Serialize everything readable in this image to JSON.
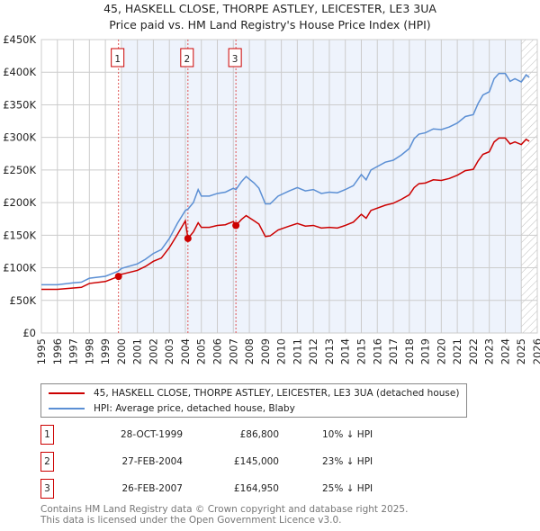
{
  "chart_data": {
    "type": "line",
    "title": "45, HASKELL CLOSE, THORPE ASTLEY, LEICESTER, LE3 3UA",
    "subtitle": "Price paid vs. HM Land Registry's House Price Index (HPI)",
    "xlim": [
      1995,
      2026
    ],
    "ylim": [
      0,
      450000
    ],
    "x_ticks": [
      "1995",
      "1996",
      "1997",
      "1998",
      "1999",
      "2000",
      "2001",
      "2002",
      "2003",
      "2004",
      "2005",
      "2006",
      "2007",
      "2008",
      "2009",
      "2010",
      "2011",
      "2012",
      "2013",
      "2014",
      "2015",
      "2016",
      "2017",
      "2018",
      "2019",
      "2020",
      "2021",
      "2022",
      "2023",
      "2024",
      "2025",
      "2026"
    ],
    "y_ticks": [
      {
        "v": 0,
        "label": "£0"
      },
      {
        "v": 50000,
        "label": "£50K"
      },
      {
        "v": 100000,
        "label": "£100K"
      },
      {
        "v": 150000,
        "label": "£150K"
      },
      {
        "v": 200000,
        "label": "£200K"
      },
      {
        "v": 250000,
        "label": "£250K"
      },
      {
        "v": 300000,
        "label": "£300K"
      },
      {
        "v": 350000,
        "label": "£350K"
      },
      {
        "v": 400000,
        "label": "£400K"
      },
      {
        "v": 450000,
        "label": "£450K"
      }
    ],
    "grid": true,
    "shaded_range": [
      2000.0,
      2025.0
    ],
    "hatched_from": 2025.0,
    "series": [
      {
        "name": "45, HASKELL CLOSE, THORPE ASTLEY, LEICESTER, LE3 3UA (detached house)",
        "color": "#cc0000",
        "x": [
          1995,
          1996,
          1997,
          1997.5,
          1998,
          1999,
          1999.82,
          2000,
          2001,
          2001.5,
          2002,
          2002.5,
          2003,
          2003.5,
          2004.0,
          2004.16,
          2004.5,
          2004.8,
          2005,
          2005.5,
          2006,
          2006.5,
          2007.0,
          2007.16,
          2007.5,
          2007.8,
          2008.3,
          2008.6,
          2009,
          2009.3,
          2009.8,
          2010.5,
          2011,
          2011.5,
          2012,
          2012.5,
          2013,
          2013.5,
          2014,
          2014.5,
          2015,
          2015.3,
          2015.6,
          2016.5,
          2017,
          2017.5,
          2018,
          2018.3,
          2018.6,
          2019,
          2019.5,
          2020,
          2020.5,
          2021,
          2021.5,
          2022,
          2022.3,
          2022.6,
          2023,
          2023.3,
          2023.6,
          2024,
          2024.3,
          2024.6,
          2025,
          2025.3,
          2025.5
        ],
        "y": [
          67,
          67,
          69,
          70,
          76,
          79,
          86.8,
          90,
          96,
          102,
          110,
          115,
          131,
          151,
          172,
          145,
          155,
          169,
          162,
          162,
          165,
          166,
          171,
          164.95,
          174,
          180,
          172,
          167,
          148,
          149,
          158,
          164,
          168,
          164,
          165,
          161,
          162,
          161,
          165,
          170,
          182,
          176,
          188,
          196,
          199,
          205,
          212,
          223,
          229,
          230,
          235,
          234,
          237,
          242,
          249,
          251,
          264,
          274,
          278,
          293,
          299,
          299,
          290,
          293,
          289,
          297,
          294
        ]
      },
      {
        "name": "HPI: Average price, detached house, Blaby",
        "color": "#5b8fd4",
        "x": [
          1995,
          1996,
          1997,
          1997.5,
          1998,
          1999,
          1999.82,
          2000,
          2001,
          2001.5,
          2002,
          2002.5,
          2003,
          2003.5,
          2004.0,
          2004.16,
          2004.5,
          2004.8,
          2005,
          2005.5,
          2006,
          2006.5,
          2007.0,
          2007.16,
          2007.5,
          2007.8,
          2008.3,
          2008.6,
          2009,
          2009.3,
          2009.8,
          2010.5,
          2011,
          2011.5,
          2012,
          2012.5,
          2013,
          2013.5,
          2014,
          2014.5,
          2015,
          2015.3,
          2015.6,
          2016.5,
          2017,
          2017.5,
          2018,
          2018.3,
          2018.6,
          2019,
          2019.5,
          2020,
          2020.5,
          2021,
          2021.5,
          2022,
          2022.3,
          2022.6,
          2023,
          2023.3,
          2023.6,
          2024,
          2024.3,
          2024.6,
          2025,
          2025.3,
          2025.5
        ],
        "y": [
          74,
          74,
          77,
          78,
          84,
          87,
          95,
          99,
          106,
          113,
          122,
          128,
          145,
          168,
          188,
          190,
          200,
          220,
          210,
          210,
          214,
          216,
          222,
          220,
          232,
          240,
          230,
          222,
          198,
          198,
          210,
          218,
          223,
          218,
          220,
          214,
          216,
          215,
          220,
          226,
          243,
          235,
          250,
          262,
          265,
          273,
          283,
          298,
          305,
          307,
          313,
          312,
          316,
          322,
          332,
          335,
          352,
          365,
          370,
          390,
          398,
          398,
          386,
          390,
          385,
          396,
          392
        ]
      }
    ],
    "y_units": "thousands GBP",
    "sales": [
      {
        "n": "1",
        "x": 1999.82,
        "y": 86.8,
        "date": "28-OCT-1999",
        "price": "£86,800",
        "hpi": "10% ↓ HPI"
      },
      {
        "n": "2",
        "x": 2004.16,
        "y": 145,
        "date": "27-FEB-2004",
        "price": "£145,000",
        "hpi": "23% ↓ HPI"
      },
      {
        "n": "3",
        "x": 2007.16,
        "y": 164.95,
        "date": "26-FEB-2007",
        "price": "£164,950",
        "hpi": "25% ↓ HPI"
      }
    ]
  },
  "legend": {
    "property": "45, HASKELL CLOSE, THORPE ASTLEY, LEICESTER, LE3 3UA (detached house)",
    "hpi": "HPI: Average price, detached house, Blaby"
  },
  "footer": {
    "line1": "Contains HM Land Registry data © Crown copyright and database right 2025.",
    "line2": "This data is licensed under the Open Government Licence v3.0."
  }
}
